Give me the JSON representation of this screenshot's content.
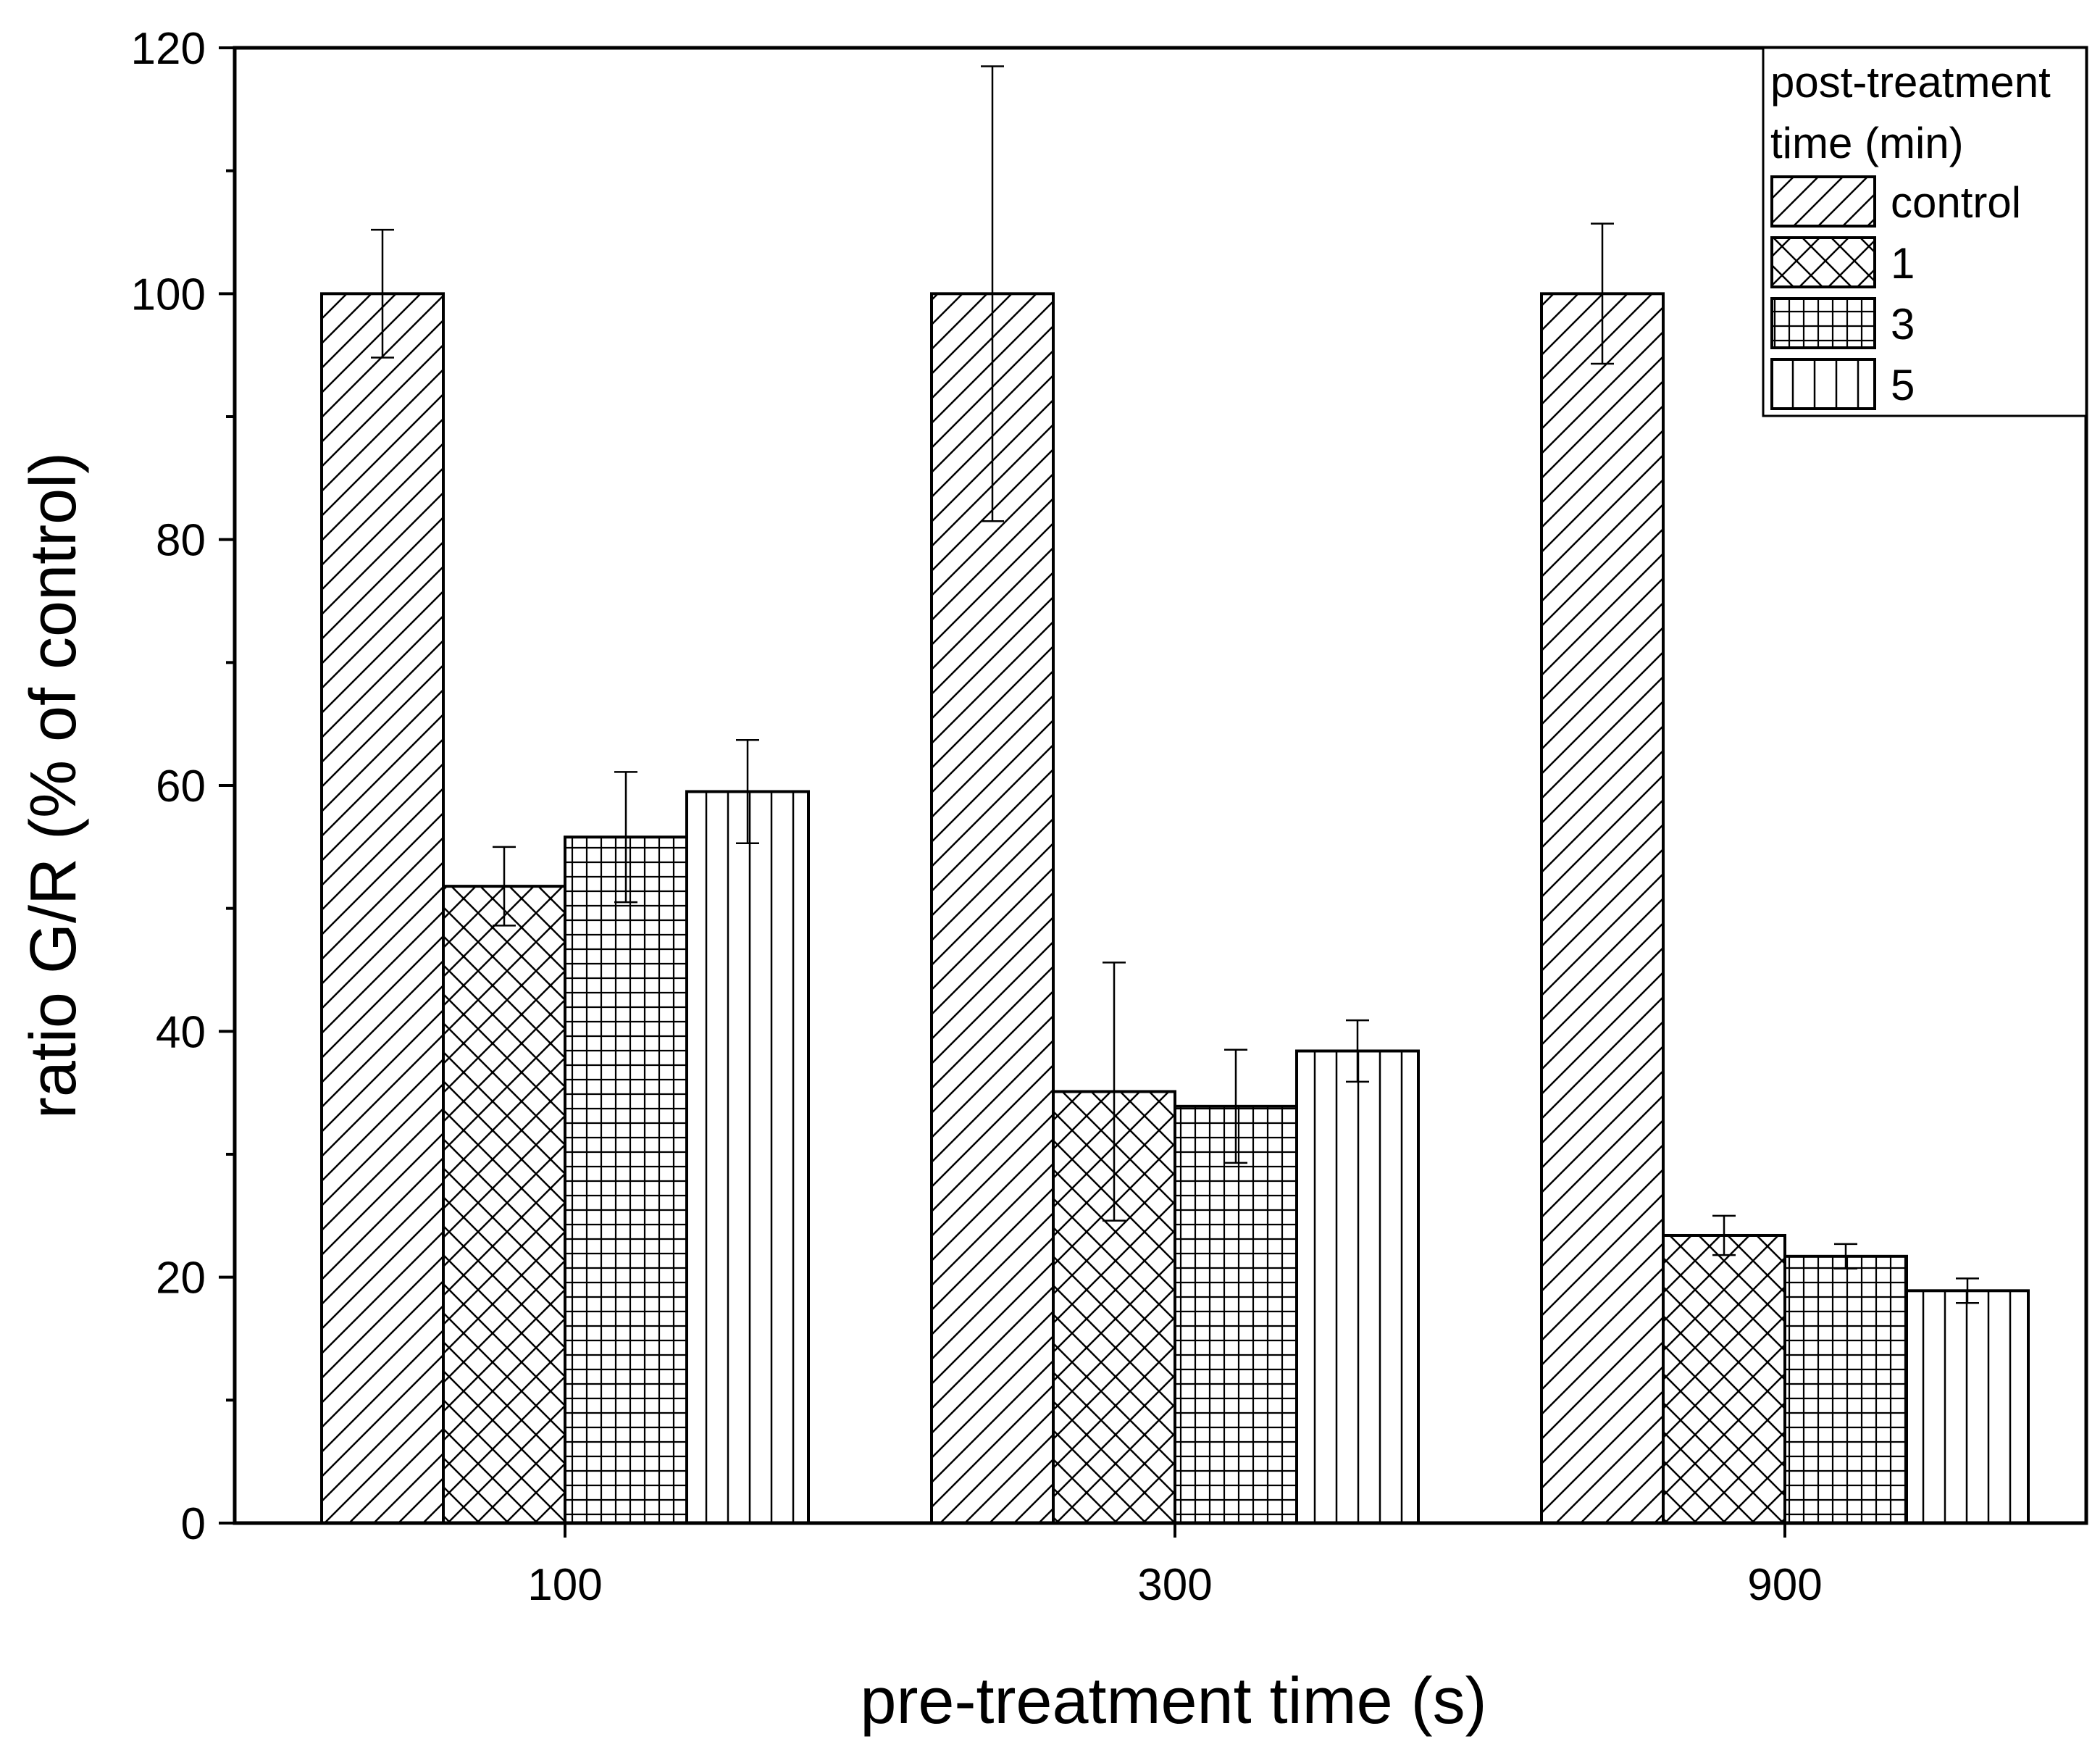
{
  "chart_data": {
    "type": "bar",
    "title": "",
    "xlabel": "pre-treatment time (s)",
    "ylabel": "ratio G/R (% of control)",
    "ylim": [
      0,
      120
    ],
    "yticks": [
      0,
      20,
      40,
      60,
      80,
      100,
      120
    ],
    "yticks_labels": [
      "0",
      "20",
      "40",
      "60",
      "80",
      "100",
      "120"
    ],
    "grid": false,
    "categories": [
      "100",
      "300",
      "900"
    ],
    "legend": {
      "title_line1": "post-treatment",
      "title_line2": "time (min)",
      "position": "top-right"
    },
    "series": [
      {
        "name": "control",
        "pattern": "diagonal",
        "values": [
          100,
          100,
          100
        ],
        "errors": [
          5.2,
          18.5,
          5.7
        ]
      },
      {
        "name": "1",
        "pattern": "crosshatch",
        "values": [
          51.8,
          35.1,
          23.4
        ],
        "errors": [
          3.2,
          10.5,
          1.6
        ]
      },
      {
        "name": "3",
        "pattern": "grid",
        "values": [
          55.8,
          33.9,
          21.7
        ],
        "errors": [
          5.3,
          4.6,
          1.0
        ]
      },
      {
        "name": "5",
        "pattern": "vertical",
        "values": [
          59.5,
          38.4,
          18.9
        ],
        "errors": [
          4.2,
          2.5,
          1.0
        ]
      }
    ]
  }
}
